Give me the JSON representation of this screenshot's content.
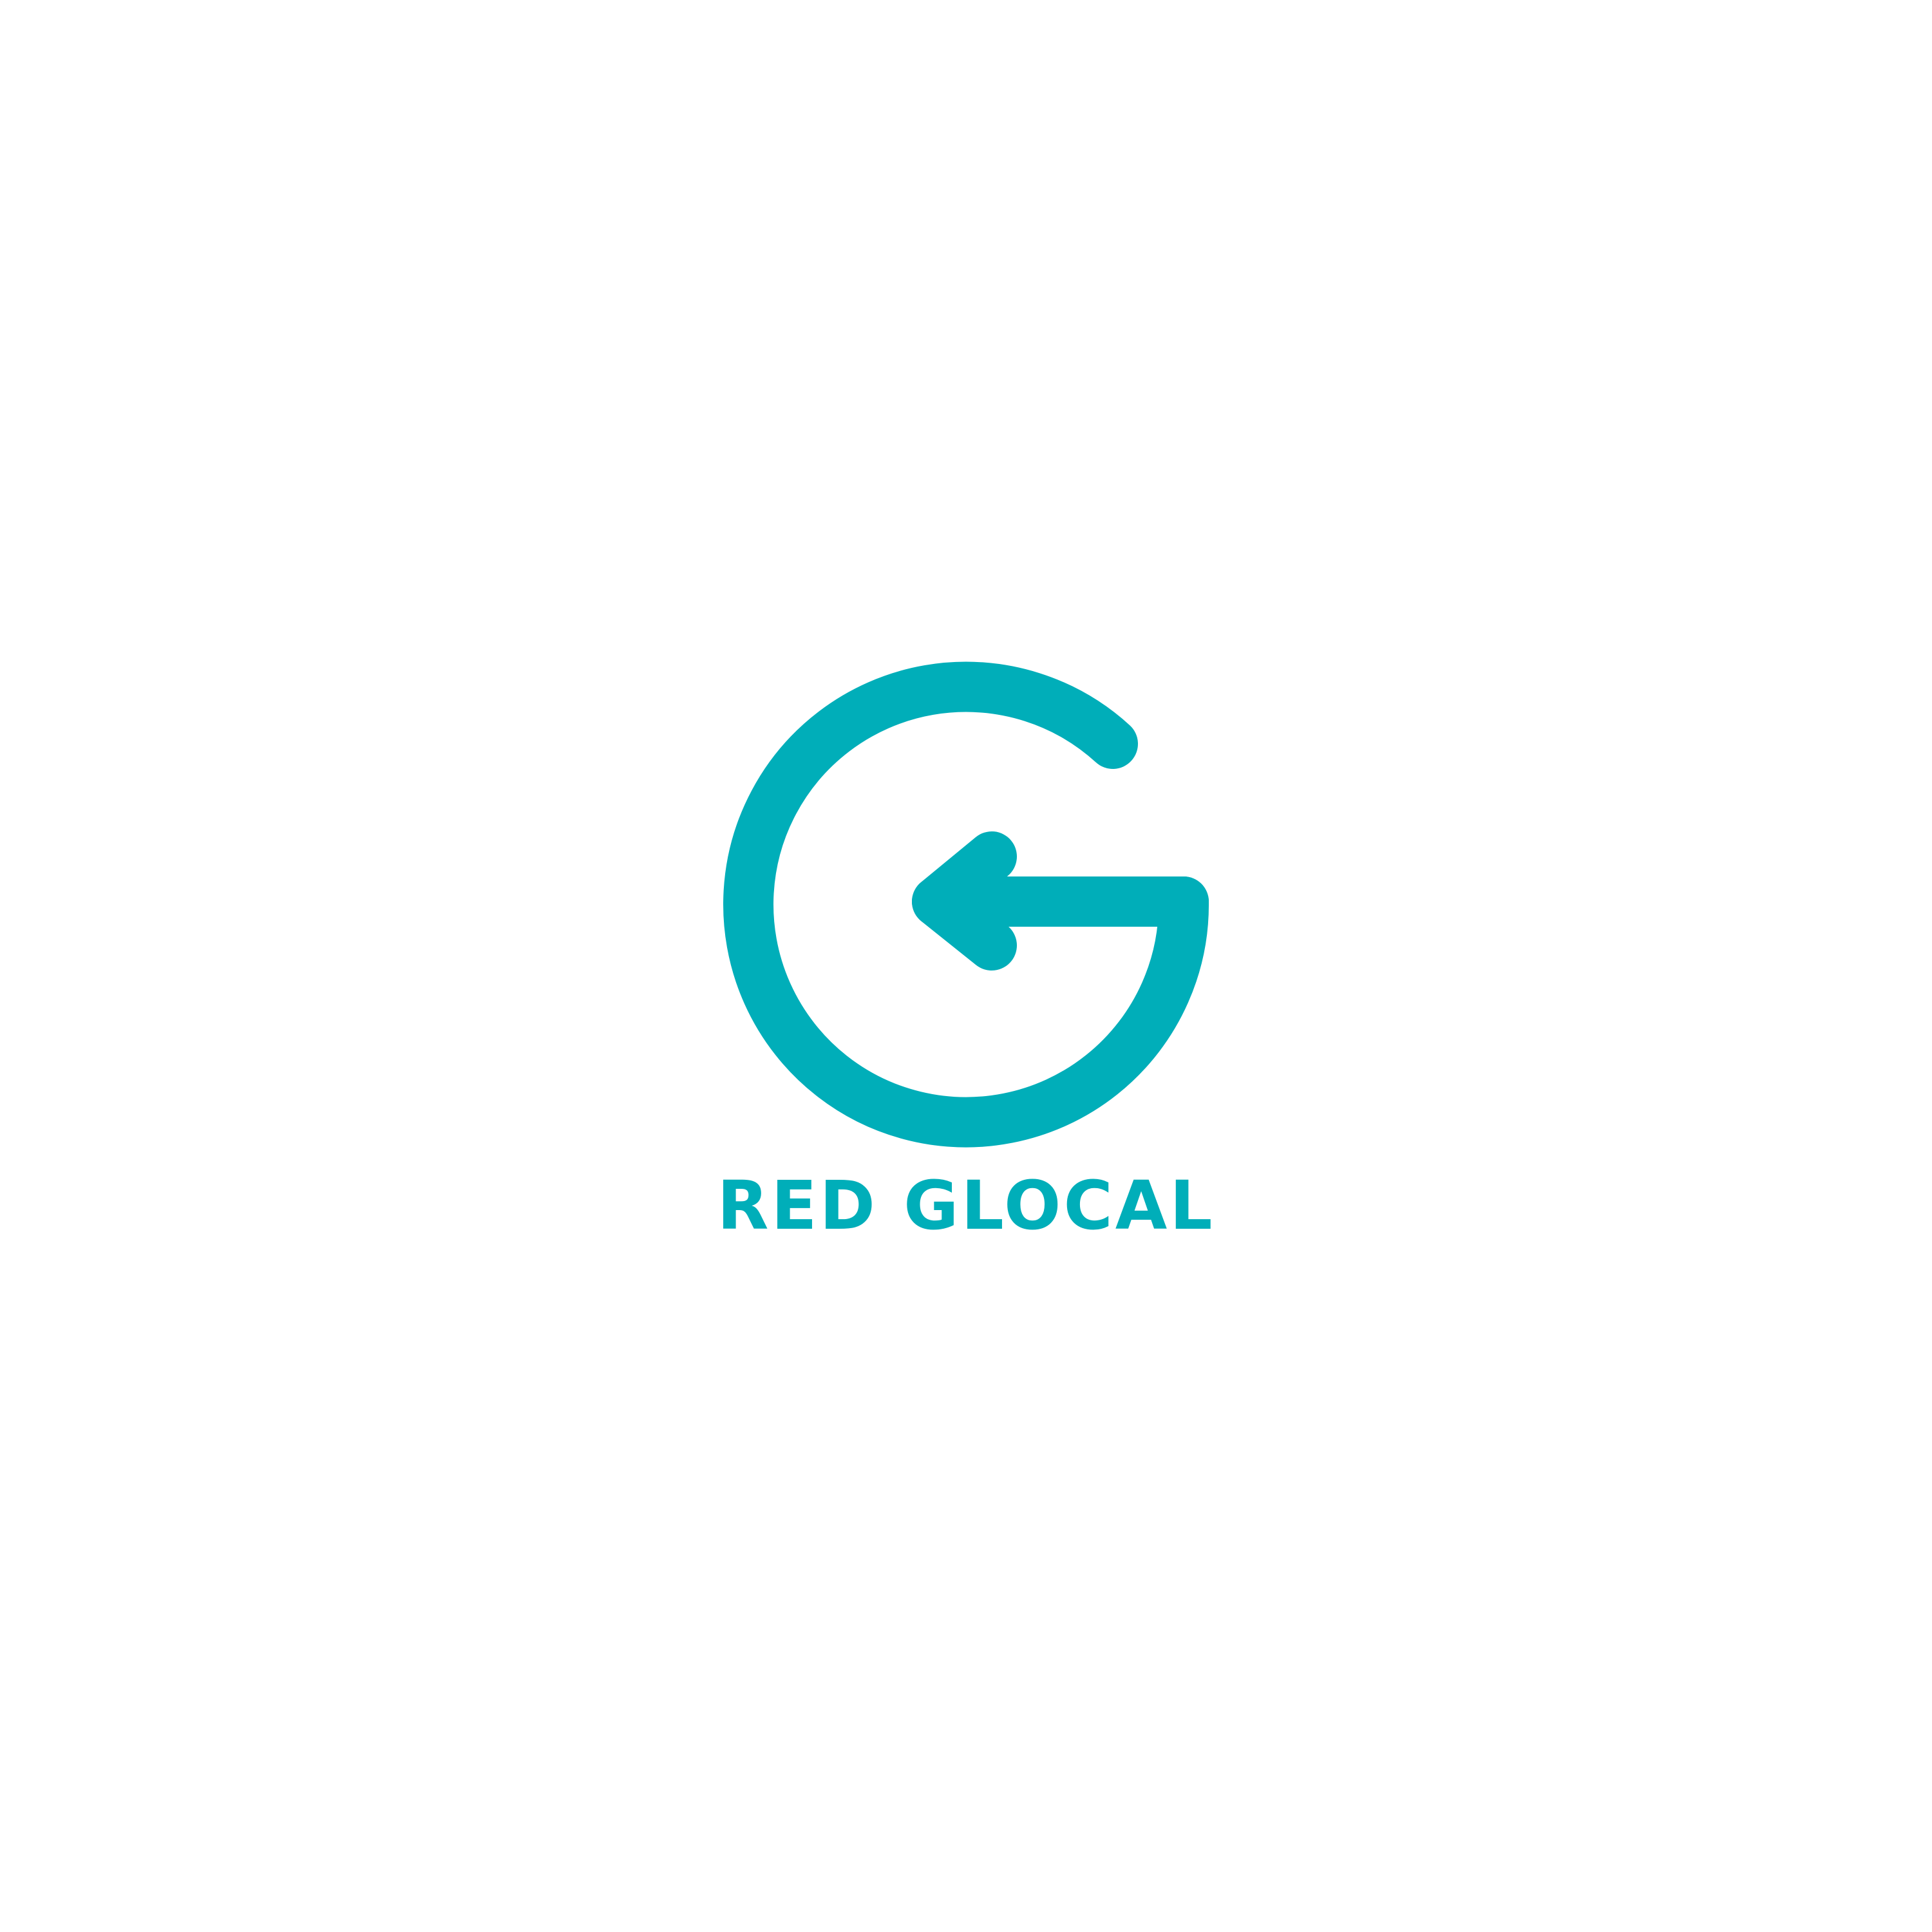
{
  "brand": {
    "name": "RED GLOCAL",
    "accent_color": "#00AEB9",
    "background_color": "#FFFFFF",
    "logo_icon": "g-arrow-left-icon"
  }
}
